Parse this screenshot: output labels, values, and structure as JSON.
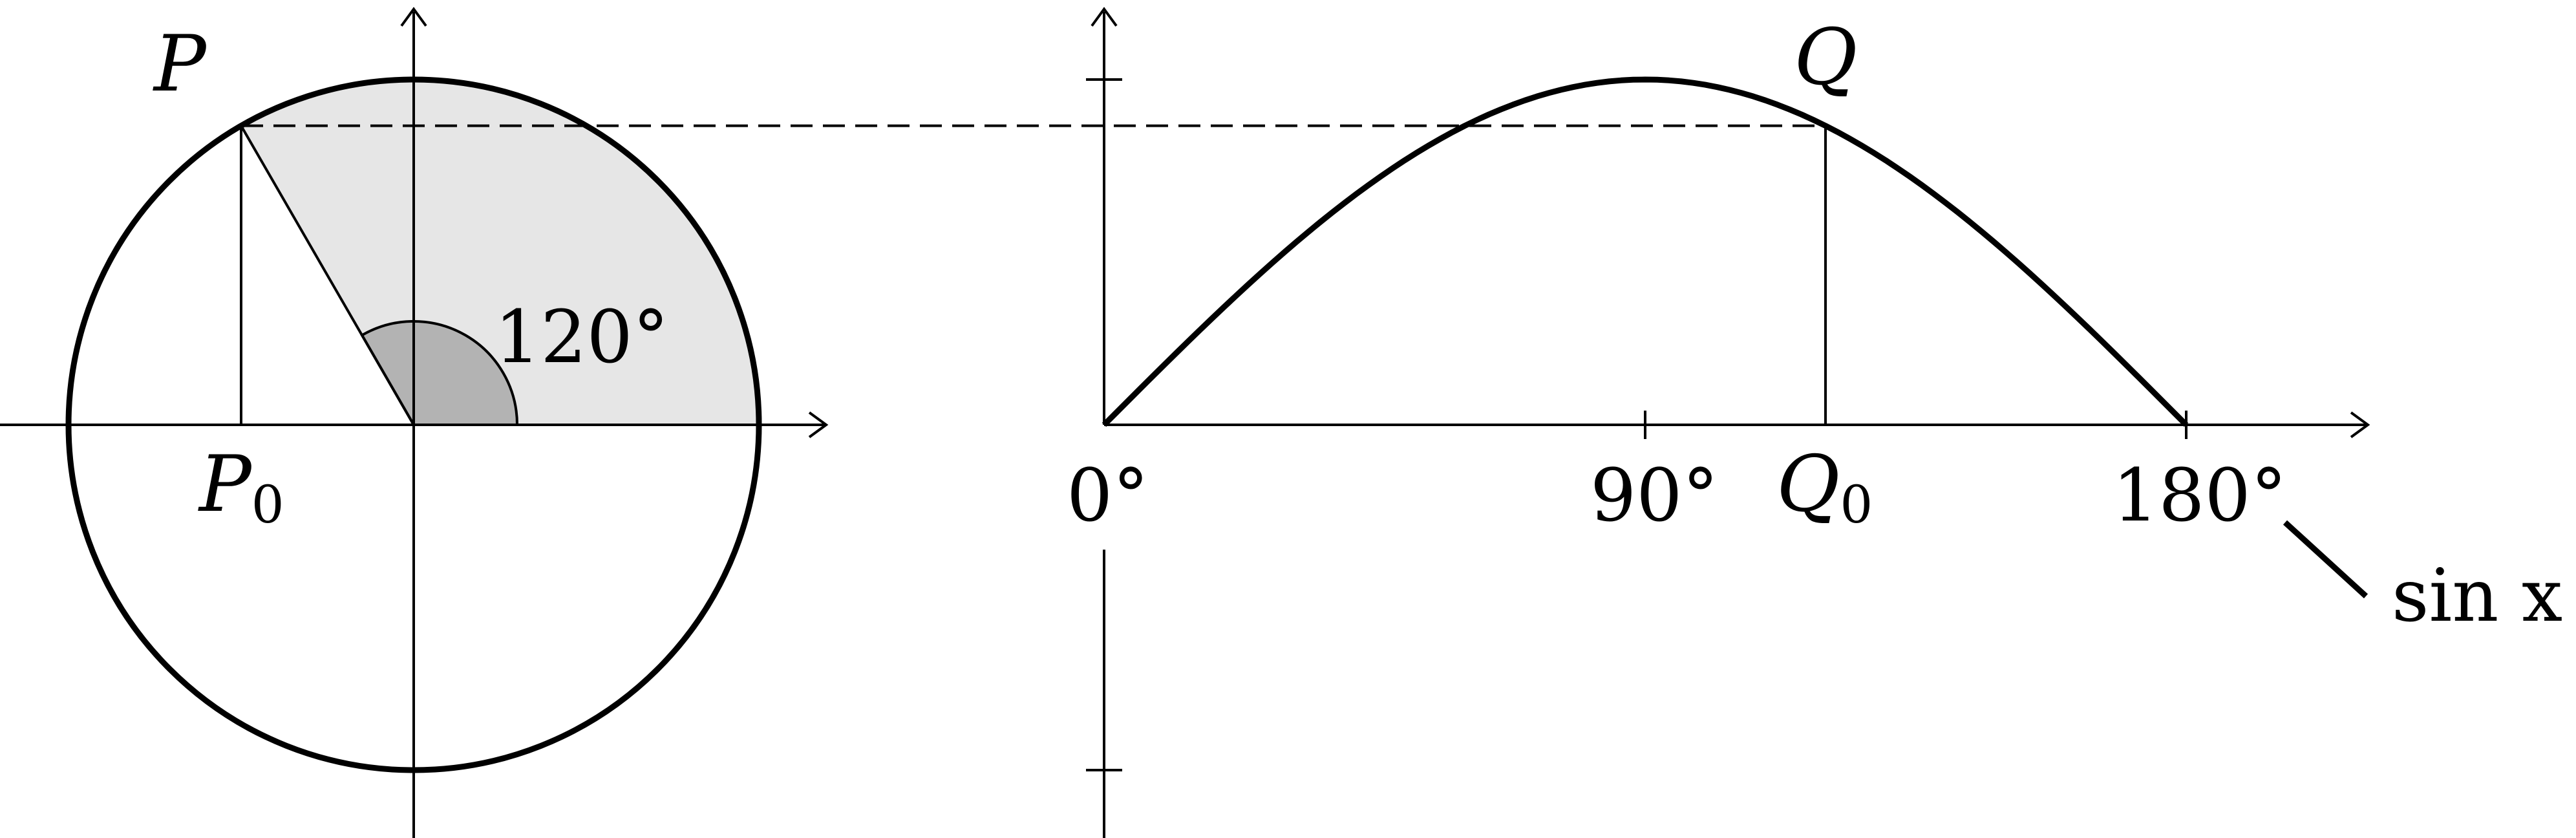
{
  "labels": {
    "point_p": "P",
    "point_p0_base": "P",
    "point_p0_sub": "0",
    "angle": "120°",
    "point_q": "Q",
    "point_q0_base": "Q",
    "point_q0_sub": "0",
    "tick_0": "0°",
    "tick_90": "90°",
    "tick_180": "180°",
    "curve_label": "sin x"
  },
  "colors": {
    "stroke": "#000000",
    "sector_fill": "#e6e6e6",
    "angle_fill": "#b3b3b3"
  },
  "chart_data": {
    "type": "line",
    "function": "sin",
    "x_unit": "degrees",
    "xlim": [
      0,
      180
    ],
    "ylim": [
      -1,
      1
    ],
    "x": [
      0,
      30,
      60,
      90,
      120,
      150,
      180
    ],
    "y": [
      0,
      0.5,
      0.866,
      1,
      0.866,
      0.5,
      0
    ],
    "highlight_angle": 120,
    "highlight_value": 0.866,
    "x_ticks": [
      0,
      90,
      180
    ],
    "y_ticks": [
      -1,
      1
    ]
  }
}
